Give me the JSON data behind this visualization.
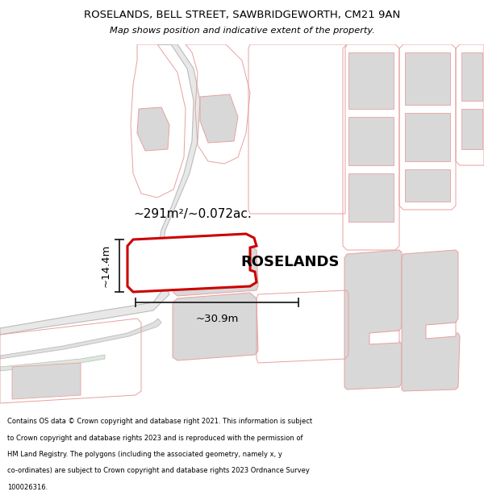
{
  "title_line1": "ROSELANDS, BELL STREET, SAWBRIDGEWORTH, CM21 9AN",
  "title_line2": "Map shows position and indicative extent of the property.",
  "footer_text": "Contains OS data © Crown copyright and database right 2021. This information is subject to Crown copyright and database rights 2023 and is reproduced with the permission of HM Land Registry. The polygons (including the associated geometry, namely x, y co-ordinates) are subject to Crown copyright and database rights 2023 Ordnance Survey 100026316.",
  "area_label": "~291m²/~0.072ac.",
  "property_name": "ROSELANDS",
  "dim_width": "~30.9m",
  "dim_height": "~14.4m",
  "map_bg": "#ffffff",
  "footer_bg": "#f0f0f0",
  "outline_color": "#e8a0a0",
  "building_fill": "#d8d8d8",
  "highlight_color": "#cc0000",
  "road_fill": "#e8e8e8",
  "road_edge": "#bbbbbb"
}
